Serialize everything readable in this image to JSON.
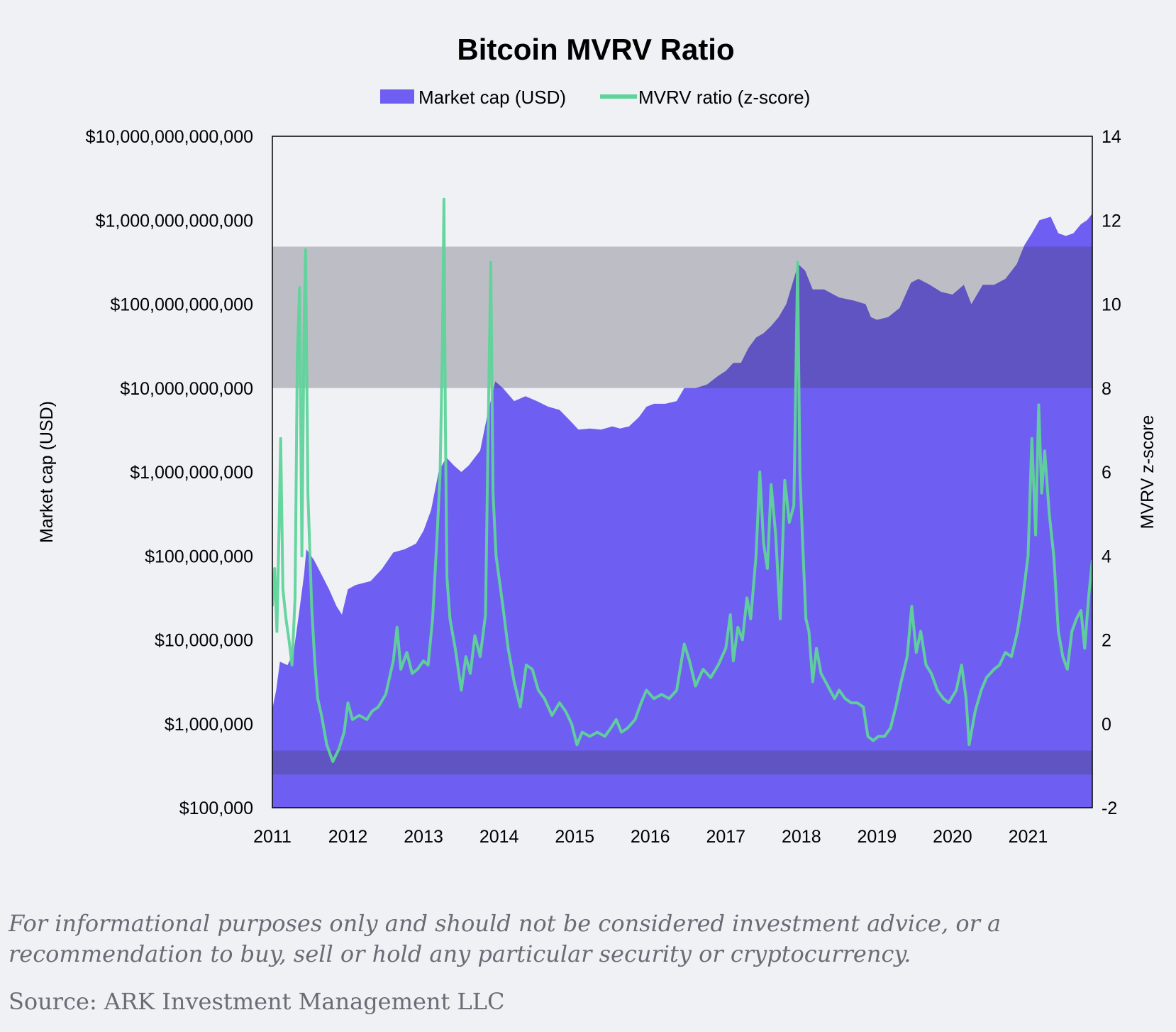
{
  "chart_data": {
    "type": "area",
    "title": "Bitcoin MVRV Ratio",
    "legend": {
      "placement": "top-center",
      "entries": [
        "Market cap (USD)",
        "MVRV ratio (z-score)"
      ]
    },
    "grid": false,
    "x": {
      "range": [
        2011,
        2021.85
      ],
      "ticks": [
        "2011",
        "2012",
        "2013",
        "2014",
        "2015",
        "2016",
        "2017",
        "2018",
        "2019",
        "2020",
        "2021"
      ]
    },
    "y_left": {
      "label": "Market cap (USD)",
      "scale": "log",
      "range": [
        100000,
        10000000000000
      ],
      "ticks": [
        "$10,000,000,000,000",
        "$1,000,000,000,000",
        "$100,000,000,000",
        "$10,000,000,000",
        "$1,000,000,000",
        "$100,000,000",
        "$10,000,000",
        "$1,000,000",
        "$100,000"
      ],
      "tick_values": [
        10000000000000,
        1000000000000,
        100000000000,
        10000000000,
        1000000000,
        100000000,
        10000000,
        1000000,
        100000
      ]
    },
    "y_right": {
      "label": "MVRV z-score",
      "range": [
        -2,
        14
      ],
      "ticks": [
        "14",
        "12",
        "10",
        "8",
        "6",
        "4",
        "2",
        "0",
        "-2"
      ],
      "tick_values": [
        14,
        12,
        10,
        8,
        6,
        4,
        2,
        0,
        -2
      ]
    },
    "bands": [
      {
        "zone": "overvalued",
        "axis": "right",
        "from": 8,
        "to": 11.37,
        "color": "#3a3a48",
        "opacity": 0.28
      },
      {
        "zone": "undervalued",
        "axis": "right",
        "from": -1.21,
        "to": -0.64,
        "color": "#3a3a48",
        "opacity": 0.28
      }
    ],
    "series": [
      {
        "name": "Market cap (USD)",
        "kind": "area",
        "axis": "left",
        "color": "#6e5ff2",
        "points": [
          [
            2011.0,
            1500000
          ],
          [
            2011.05,
            2500000
          ],
          [
            2011.1,
            5500000
          ],
          [
            2011.2,
            5000000
          ],
          [
            2011.28,
            7000000
          ],
          [
            2011.35,
            20000000
          ],
          [
            2011.42,
            60000000
          ],
          [
            2011.45,
            120000000
          ],
          [
            2011.55,
            90000000
          ],
          [
            2011.65,
            60000000
          ],
          [
            2011.75,
            40000000
          ],
          [
            2011.85,
            25000000
          ],
          [
            2011.92,
            20000000
          ],
          [
            2012.0,
            40000000
          ],
          [
            2012.1,
            45000000
          ],
          [
            2012.3,
            50000000
          ],
          [
            2012.45,
            70000000
          ],
          [
            2012.6,
            110000000
          ],
          [
            2012.75,
            120000000
          ],
          [
            2012.9,
            140000000
          ],
          [
            2013.0,
            200000000
          ],
          [
            2013.1,
            350000000
          ],
          [
            2013.2,
            1000000000
          ],
          [
            2013.3,
            1500000000
          ],
          [
            2013.4,
            1200000000
          ],
          [
            2013.5,
            1000000000
          ],
          [
            2013.6,
            1200000000
          ],
          [
            2013.75,
            1800000000
          ],
          [
            2013.85,
            5000000000
          ],
          [
            2013.95,
            12000000000
          ],
          [
            2014.05,
            10000000000
          ],
          [
            2014.2,
            7000000000
          ],
          [
            2014.35,
            8000000000
          ],
          [
            2014.5,
            7000000000
          ],
          [
            2014.65,
            6000000000
          ],
          [
            2014.8,
            5500000000
          ],
          [
            2014.95,
            4000000000
          ],
          [
            2015.05,
            3200000000
          ],
          [
            2015.2,
            3300000000
          ],
          [
            2015.35,
            3200000000
          ],
          [
            2015.5,
            3500000000
          ],
          [
            2015.6,
            3300000000
          ],
          [
            2015.72,
            3500000000
          ],
          [
            2015.85,
            4500000000
          ],
          [
            2015.95,
            6000000000
          ],
          [
            2016.05,
            6500000000
          ],
          [
            2016.2,
            6500000000
          ],
          [
            2016.35,
            7000000000
          ],
          [
            2016.45,
            10000000000
          ],
          [
            2016.6,
            10000000000
          ],
          [
            2016.75,
            11000000000
          ],
          [
            2016.9,
            14000000000
          ],
          [
            2017.0,
            16000000000
          ],
          [
            2017.1,
            20000000000
          ],
          [
            2017.2,
            20000000000
          ],
          [
            2017.3,
            30000000000
          ],
          [
            2017.4,
            40000000000
          ],
          [
            2017.5,
            45000000000
          ],
          [
            2017.6,
            55000000000
          ],
          [
            2017.7,
            70000000000
          ],
          [
            2017.8,
            100000000000
          ],
          [
            2017.9,
            200000000000
          ],
          [
            2017.96,
            300000000000
          ],
          [
            2018.05,
            250000000000
          ],
          [
            2018.15,
            150000000000
          ],
          [
            2018.3,
            150000000000
          ],
          [
            2018.5,
            120000000000
          ],
          [
            2018.7,
            110000000000
          ],
          [
            2018.85,
            100000000000
          ],
          [
            2018.92,
            70000000000
          ],
          [
            2019.0,
            65000000000
          ],
          [
            2019.15,
            70000000000
          ],
          [
            2019.3,
            90000000000
          ],
          [
            2019.45,
            180000000000
          ],
          [
            2019.55,
            200000000000
          ],
          [
            2019.7,
            170000000000
          ],
          [
            2019.85,
            140000000000
          ],
          [
            2020.0,
            130000000000
          ],
          [
            2020.15,
            170000000000
          ],
          [
            2020.25,
            100000000000
          ],
          [
            2020.4,
            170000000000
          ],
          [
            2020.55,
            170000000000
          ],
          [
            2020.7,
            200000000000
          ],
          [
            2020.85,
            300000000000
          ],
          [
            2020.95,
            500000000000
          ],
          [
            2021.05,
            700000000000
          ],
          [
            2021.15,
            1000000000000
          ],
          [
            2021.3,
            1100000000000
          ],
          [
            2021.4,
            700000000000
          ],
          [
            2021.5,
            650000000000
          ],
          [
            2021.6,
            700000000000
          ],
          [
            2021.7,
            900000000000
          ],
          [
            2021.78,
            1000000000000
          ],
          [
            2021.85,
            1200000000000
          ]
        ]
      },
      {
        "name": "MVRV ratio (z-score)",
        "kind": "line",
        "axis": "right",
        "color": "#5fd39a",
        "points": [
          [
            2011.0,
            2.8
          ],
          [
            2011.03,
            3.7
          ],
          [
            2011.06,
            2.2
          ],
          [
            2011.09,
            4.8
          ],
          [
            2011.11,
            6.8
          ],
          [
            2011.14,
            3.2
          ],
          [
            2011.18,
            2.5
          ],
          [
            2011.22,
            2.0
          ],
          [
            2011.26,
            1.4
          ],
          [
            2011.3,
            3.0
          ],
          [
            2011.33,
            8.8
          ],
          [
            2011.36,
            10.4
          ],
          [
            2011.39,
            4.0
          ],
          [
            2011.42,
            9.5
          ],
          [
            2011.44,
            11.3
          ],
          [
            2011.47,
            5.5
          ],
          [
            2011.52,
            2.8
          ],
          [
            2011.56,
            1.5
          ],
          [
            2011.6,
            0.6
          ],
          [
            2011.65,
            0.2
          ],
          [
            2011.72,
            -0.5
          ],
          [
            2011.8,
            -0.9
          ],
          [
            2011.88,
            -0.6
          ],
          [
            2011.95,
            -0.2
          ],
          [
            2012.0,
            0.5
          ],
          [
            2012.06,
            0.1
          ],
          [
            2012.15,
            0.2
          ],
          [
            2012.25,
            0.1
          ],
          [
            2012.32,
            0.3
          ],
          [
            2012.4,
            0.4
          ],
          [
            2012.5,
            0.7
          ],
          [
            2012.6,
            1.5
          ],
          [
            2012.65,
            2.3
          ],
          [
            2012.7,
            1.3
          ],
          [
            2012.78,
            1.7
          ],
          [
            2012.85,
            1.2
          ],
          [
            2012.92,
            1.3
          ],
          [
            2013.0,
            1.5
          ],
          [
            2013.06,
            1.4
          ],
          [
            2013.12,
            2.5
          ],
          [
            2013.18,
            4.5
          ],
          [
            2013.22,
            6.0
          ],
          [
            2013.25,
            9.0
          ],
          [
            2013.27,
            12.5
          ],
          [
            2013.29,
            7.0
          ],
          [
            2013.31,
            3.5
          ],
          [
            2013.35,
            2.5
          ],
          [
            2013.42,
            1.8
          ],
          [
            2013.5,
            0.8
          ],
          [
            2013.56,
            1.6
          ],
          [
            2013.62,
            1.2
          ],
          [
            2013.68,
            2.1
          ],
          [
            2013.75,
            1.6
          ],
          [
            2013.82,
            2.6
          ],
          [
            2013.86,
            7.5
          ],
          [
            2013.89,
            11.0
          ],
          [
            2013.92,
            5.5
          ],
          [
            2013.96,
            4.0
          ],
          [
            2014.05,
            2.8
          ],
          [
            2014.12,
            1.8
          ],
          [
            2014.2,
            1.0
          ],
          [
            2014.28,
            0.4
          ],
          [
            2014.36,
            1.4
          ],
          [
            2014.44,
            1.3
          ],
          [
            2014.52,
            0.8
          ],
          [
            2014.6,
            0.6
          ],
          [
            2014.7,
            0.2
          ],
          [
            2014.8,
            0.5
          ],
          [
            2014.88,
            0.3
          ],
          [
            2014.96,
            0.0
          ],
          [
            2015.03,
            -0.5
          ],
          [
            2015.1,
            -0.2
          ],
          [
            2015.2,
            -0.3
          ],
          [
            2015.3,
            -0.2
          ],
          [
            2015.4,
            -0.3
          ],
          [
            2015.48,
            -0.1
          ],
          [
            2015.55,
            0.1
          ],
          [
            2015.62,
            -0.2
          ],
          [
            2015.7,
            -0.1
          ],
          [
            2015.8,
            0.1
          ],
          [
            2015.88,
            0.5
          ],
          [
            2015.95,
            0.8
          ],
          [
            2016.05,
            0.6
          ],
          [
            2016.15,
            0.7
          ],
          [
            2016.25,
            0.6
          ],
          [
            2016.35,
            0.8
          ],
          [
            2016.45,
            1.9
          ],
          [
            2016.52,
            1.5
          ],
          [
            2016.6,
            0.9
          ],
          [
            2016.7,
            1.3
          ],
          [
            2016.8,
            1.1
          ],
          [
            2016.9,
            1.4
          ],
          [
            2017.0,
            1.8
          ],
          [
            2017.06,
            2.6
          ],
          [
            2017.1,
            1.5
          ],
          [
            2017.16,
            2.3
          ],
          [
            2017.22,
            2.0
          ],
          [
            2017.28,
            3.0
          ],
          [
            2017.33,
            2.5
          ],
          [
            2017.4,
            4.0
          ],
          [
            2017.45,
            6.0
          ],
          [
            2017.5,
            4.3
          ],
          [
            2017.55,
            3.7
          ],
          [
            2017.6,
            5.7
          ],
          [
            2017.66,
            4.5
          ],
          [
            2017.72,
            2.5
          ],
          [
            2017.78,
            5.8
          ],
          [
            2017.84,
            4.8
          ],
          [
            2017.9,
            5.2
          ],
          [
            2017.93,
            8.5
          ],
          [
            2017.95,
            11.0
          ],
          [
            2017.98,
            6.0
          ],
          [
            2018.02,
            4.2
          ],
          [
            2018.06,
            2.5
          ],
          [
            2018.1,
            2.2
          ],
          [
            2018.15,
            1.0
          ],
          [
            2018.2,
            1.8
          ],
          [
            2018.26,
            1.2
          ],
          [
            2018.32,
            1.0
          ],
          [
            2018.38,
            0.8
          ],
          [
            2018.44,
            0.6
          ],
          [
            2018.5,
            0.8
          ],
          [
            2018.58,
            0.6
          ],
          [
            2018.66,
            0.5
          ],
          [
            2018.74,
            0.5
          ],
          [
            2018.82,
            0.4
          ],
          [
            2018.88,
            -0.3
          ],
          [
            2018.95,
            -0.4
          ],
          [
            2019.02,
            -0.3
          ],
          [
            2019.1,
            -0.3
          ],
          [
            2019.18,
            -0.1
          ],
          [
            2019.25,
            0.4
          ],
          [
            2019.32,
            1.0
          ],
          [
            2019.4,
            1.6
          ],
          [
            2019.46,
            2.8
          ],
          [
            2019.52,
            1.7
          ],
          [
            2019.58,
            2.2
          ],
          [
            2019.65,
            1.4
          ],
          [
            2019.72,
            1.2
          ],
          [
            2019.8,
            0.8
          ],
          [
            2019.88,
            0.6
          ],
          [
            2019.95,
            0.5
          ],
          [
            2020.05,
            0.8
          ],
          [
            2020.12,
            1.4
          ],
          [
            2020.18,
            0.6
          ],
          [
            2020.22,
            -0.5
          ],
          [
            2020.3,
            0.3
          ],
          [
            2020.38,
            0.8
          ],
          [
            2020.45,
            1.1
          ],
          [
            2020.55,
            1.3
          ],
          [
            2020.62,
            1.4
          ],
          [
            2020.7,
            1.7
          ],
          [
            2020.78,
            1.6
          ],
          [
            2020.86,
            2.2
          ],
          [
            2020.93,
            3.0
          ],
          [
            2021.0,
            4.0
          ],
          [
            2021.05,
            6.8
          ],
          [
            2021.1,
            4.5
          ],
          [
            2021.14,
            7.6
          ],
          [
            2021.18,
            5.5
          ],
          [
            2021.22,
            6.5
          ],
          [
            2021.28,
            5.0
          ],
          [
            2021.34,
            4.0
          ],
          [
            2021.4,
            2.2
          ],
          [
            2021.46,
            1.6
          ],
          [
            2021.52,
            1.3
          ],
          [
            2021.58,
            2.2
          ],
          [
            2021.64,
            2.5
          ],
          [
            2021.7,
            2.7
          ],
          [
            2021.75,
            1.8
          ],
          [
            2021.8,
            3.0
          ],
          [
            2021.85,
            3.9
          ]
        ]
      }
    ],
    "footnote": "For informational purposes only and should not be considered investment advice, or a recommendation to buy, sell or hold any particular security or cryptocurrency.",
    "source": "Source: ARK Investment Management LLC"
  }
}
